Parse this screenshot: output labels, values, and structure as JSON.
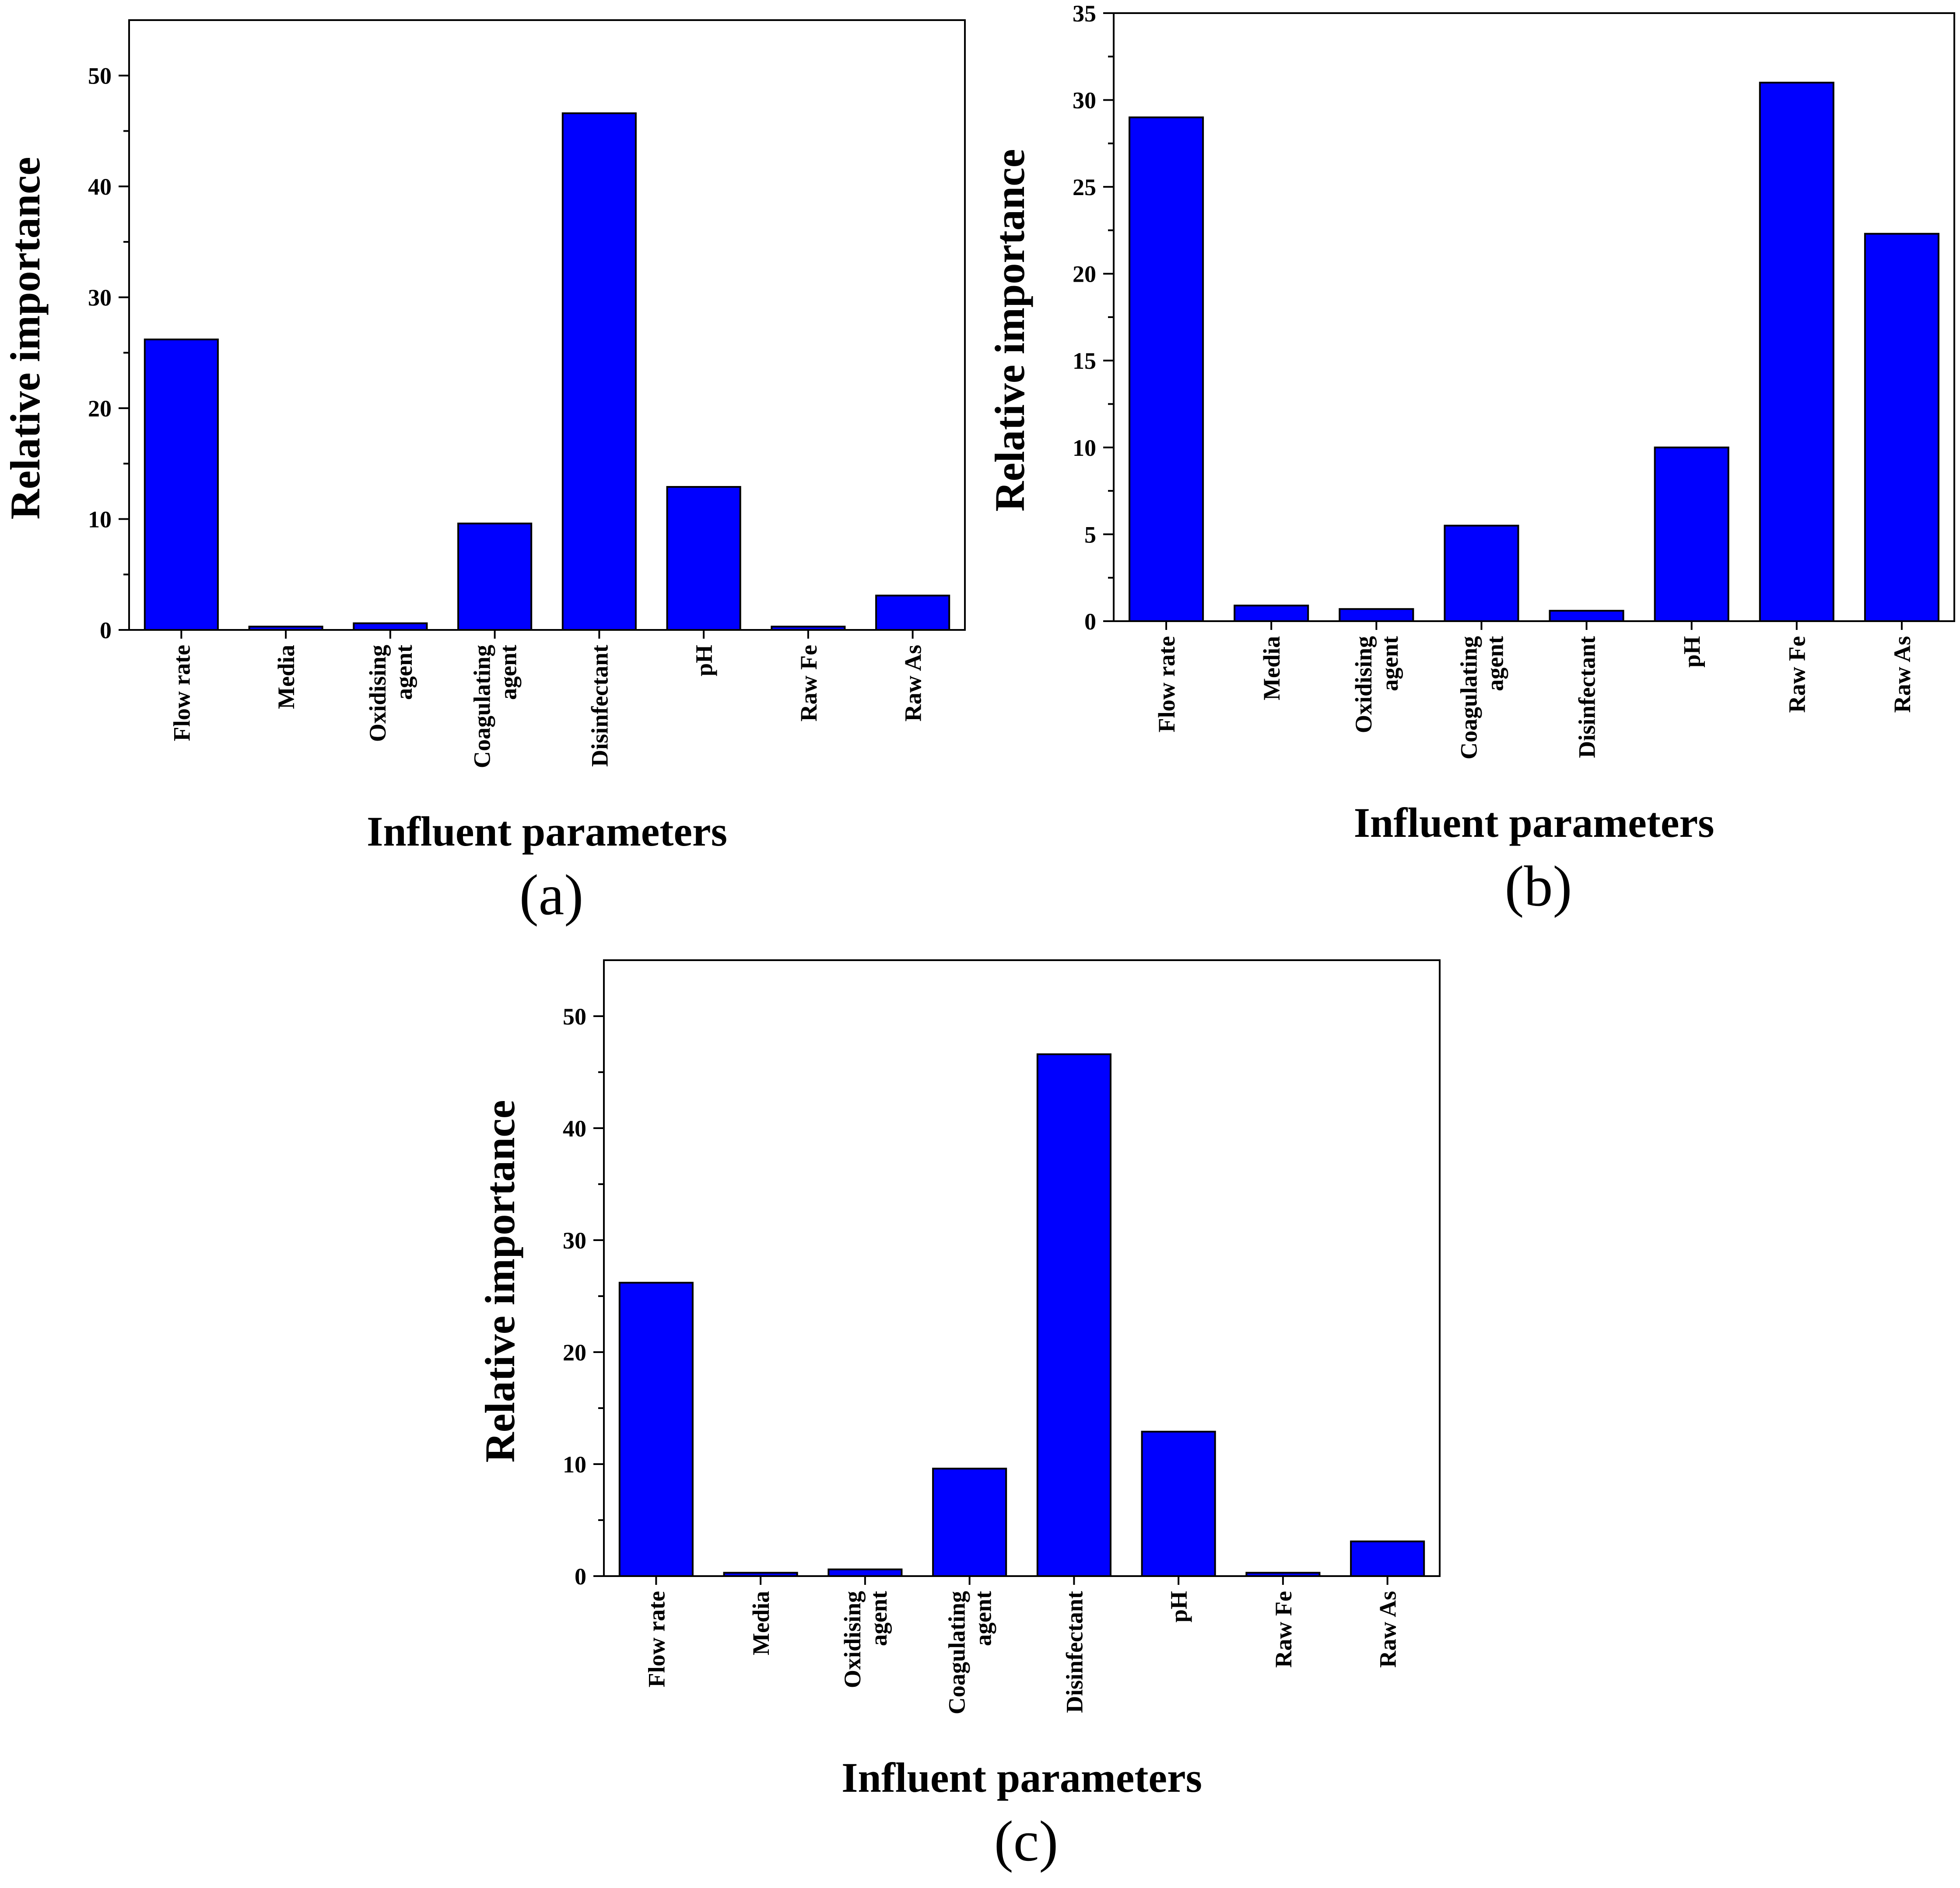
{
  "figure": {
    "bar_color": "#0000ff",
    "bar_edge_color": "#000000",
    "axis_color": "#000000"
  },
  "chart_data": [
    {
      "id": "a",
      "type": "bar",
      "panel_label": "(a)",
      "xlabel": "Influent parameters",
      "ylabel": "Relative importance",
      "categories": [
        "Flow rate",
        "Media",
        "Oxidising agent",
        "Coagulating agent",
        "Disinfectant",
        "pH",
        "Raw Fe",
        "Raw As"
      ],
      "category_lines": [
        [
          "Flow rate"
        ],
        [
          "Media"
        ],
        [
          "Oxidising",
          "agent"
        ],
        [
          "Coagulating",
          "agent"
        ],
        [
          "Disinfectant"
        ],
        [
          "pH"
        ],
        [
          "Raw Fe"
        ],
        [
          "Raw As"
        ]
      ],
      "values": [
        26.2,
        0.3,
        0.6,
        9.6,
        46.6,
        12.9,
        0.3,
        3.1
      ],
      "ylim": [
        0,
        55
      ],
      "yticks": [
        0,
        10,
        20,
        30,
        40,
        50
      ],
      "minor_step": 5,
      "grid": false
    },
    {
      "id": "b",
      "type": "bar",
      "panel_label": "(b)",
      "xlabel": "Influent parameters",
      "ylabel": "Relative importance",
      "categories": [
        "Flow rate",
        "Media",
        "Oxidising agent",
        "Coagulating agent",
        "Disinfectant",
        "pH",
        "Raw Fe",
        "Raw As"
      ],
      "category_lines": [
        [
          "Flow rate"
        ],
        [
          "Media"
        ],
        [
          "Oxidising",
          "agent"
        ],
        [
          "Coagulating",
          "agent"
        ],
        [
          "Disinfectant"
        ],
        [
          "pH"
        ],
        [
          "Raw Fe"
        ],
        [
          "Raw As"
        ]
      ],
      "values": [
        29.0,
        0.9,
        0.7,
        5.5,
        0.6,
        10.0,
        31.0,
        22.3
      ],
      "ylim": [
        0,
        35
      ],
      "yticks": [
        0,
        5,
        10,
        15,
        20,
        25,
        30,
        35
      ],
      "minor_step": 2.5,
      "grid": false
    },
    {
      "id": "c",
      "type": "bar",
      "panel_label": "(c)",
      "xlabel": "Influent parameters",
      "ylabel": "Relative importance",
      "categories": [
        "Flow rate",
        "Media",
        "Oxidising agent",
        "Coagulating agent",
        "Disinfectant",
        "pH",
        "Raw Fe",
        "Raw As"
      ],
      "category_lines": [
        [
          "Flow rate"
        ],
        [
          "Media"
        ],
        [
          "Oxidising",
          "agent"
        ],
        [
          "Coagulating",
          "agent"
        ],
        [
          "Disinfectant"
        ],
        [
          "pH"
        ],
        [
          "Raw Fe"
        ],
        [
          "Raw As"
        ]
      ],
      "values": [
        26.2,
        0.3,
        0.6,
        9.6,
        46.6,
        12.9,
        0.3,
        3.1
      ],
      "ylim": [
        0,
        55
      ],
      "yticks": [
        0,
        10,
        20,
        30,
        40,
        50
      ],
      "minor_step": 5,
      "grid": false
    }
  ]
}
